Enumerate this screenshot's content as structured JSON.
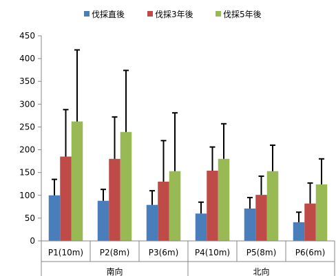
{
  "chart_data": {
    "type": "bar",
    "title": "",
    "xlabel": "",
    "ylabel": "",
    "ylim": [
      0,
      450
    ],
    "yticks": [
      0,
      50,
      100,
      150,
      200,
      250,
      300,
      350,
      400,
      450
    ],
    "grid": false,
    "legend_position": "top",
    "categories": [
      "P1(10m)",
      "P2(8m)",
      "P3(6m)",
      "P4(10m)",
      "P5(8m)",
      "P6(6m)"
    ],
    "groups": [
      {
        "label": "南向",
        "categories": [
          0,
          1,
          2
        ]
      },
      {
        "label": "北向",
        "categories": [
          3,
          4,
          5
        ]
      }
    ],
    "series": [
      {
        "name": "伐採直後",
        "color": "#4a7ebb",
        "values": [
          100,
          88,
          79,
          60,
          71,
          41
        ],
        "error_upper": [
          135,
          113,
          110,
          85,
          95,
          63
        ]
      },
      {
        "name": "伐採3年後",
        "color": "#be4b48",
        "values": [
          185,
          180,
          130,
          154,
          101,
          82
        ],
        "error_upper": [
          288,
          272,
          220,
          206,
          142,
          127
        ]
      },
      {
        "name": "伐採5年後",
        "color": "#98b954",
        "values": [
          262,
          239,
          153,
          180,
          153,
          124
        ],
        "error_upper": [
          419,
          374,
          281,
          257,
          210,
          180
        ]
      }
    ]
  }
}
